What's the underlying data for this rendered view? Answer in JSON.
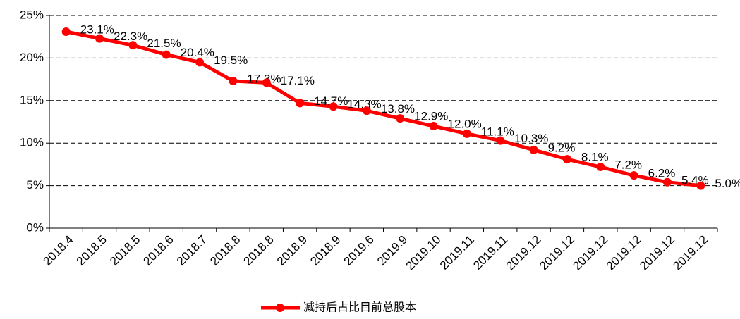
{
  "chart_data": {
    "type": "line",
    "categories": [
      "2018.4",
      "2018.5",
      "2018.5",
      "2018.6",
      "2018.7",
      "2018.8",
      "2018.8",
      "2018.9",
      "2018.9",
      "2019.6",
      "2019.9",
      "2019.10",
      "2019.11",
      "2019.11",
      "2019.12",
      "2019.12",
      "2019.12",
      "2019.12",
      "2019.12",
      "2019.12"
    ],
    "series": [
      {
        "name": "减持后占比目前总股本",
        "color": "#ff0000",
        "values": [
          23.1,
          22.3,
          21.5,
          20.4,
          19.5,
          17.3,
          17.1,
          14.7,
          14.3,
          13.8,
          12.9,
          12.0,
          11.1,
          10.3,
          9.2,
          8.1,
          7.2,
          6.2,
          5.4,
          5.0
        ],
        "value_labels": [
          "23.1%",
          "22.3%",
          "21.5%",
          "20.4%",
          "19.5%",
          "17.3%",
          "17.1%",
          "14.7%",
          "14.3%",
          "13.8%",
          "12.9%",
          "12.0%",
          "11.1%",
          "10.3%",
          "9.2%",
          "8.1%",
          "7.2%",
          "6.2%",
          "5.4%",
          "5.0%"
        ]
      }
    ],
    "ylim": [
      0,
      25
    ],
    "yticks": [
      {
        "value": 0,
        "label": "0%"
      },
      {
        "value": 5,
        "label": "5%"
      },
      {
        "value": 10,
        "label": "10%"
      },
      {
        "value": 15,
        "label": "15%"
      },
      {
        "value": 20,
        "label": "20%"
      },
      {
        "value": 25,
        "label": "25%"
      }
    ],
    "grid": true,
    "legend": "bottom"
  }
}
